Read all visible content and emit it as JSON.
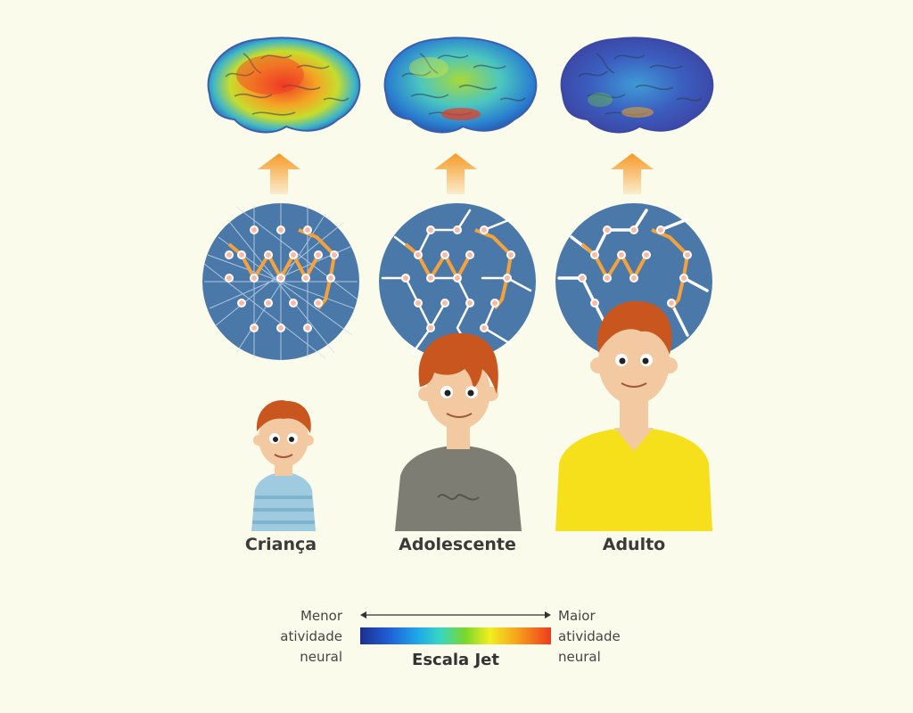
{
  "stages": [
    {
      "id": "crianca",
      "label": "Criança",
      "activity": "high"
    },
    {
      "id": "adolescente",
      "label": "Adolescente",
      "activity": "medium"
    },
    {
      "id": "adulto",
      "label": "Adulto",
      "activity": "low"
    }
  ],
  "scale": {
    "left_lines": [
      "Menor",
      "atividade",
      "neural"
    ],
    "right_lines": [
      "Maior",
      "atividade",
      "neural"
    ],
    "title": "Escala Jet"
  },
  "colors": {
    "background": "#fbfbeb",
    "network_blue": "#4a78a8",
    "arrow_orange": "#f79a26",
    "pathway_orange": "#f5a23c",
    "shirt_child": "#9fcbe0",
    "shirt_teen": "#7d7d74",
    "shirt_adult": "#f6df1b",
    "hair": "#c8561e",
    "skin": "#f3c9a2"
  }
}
